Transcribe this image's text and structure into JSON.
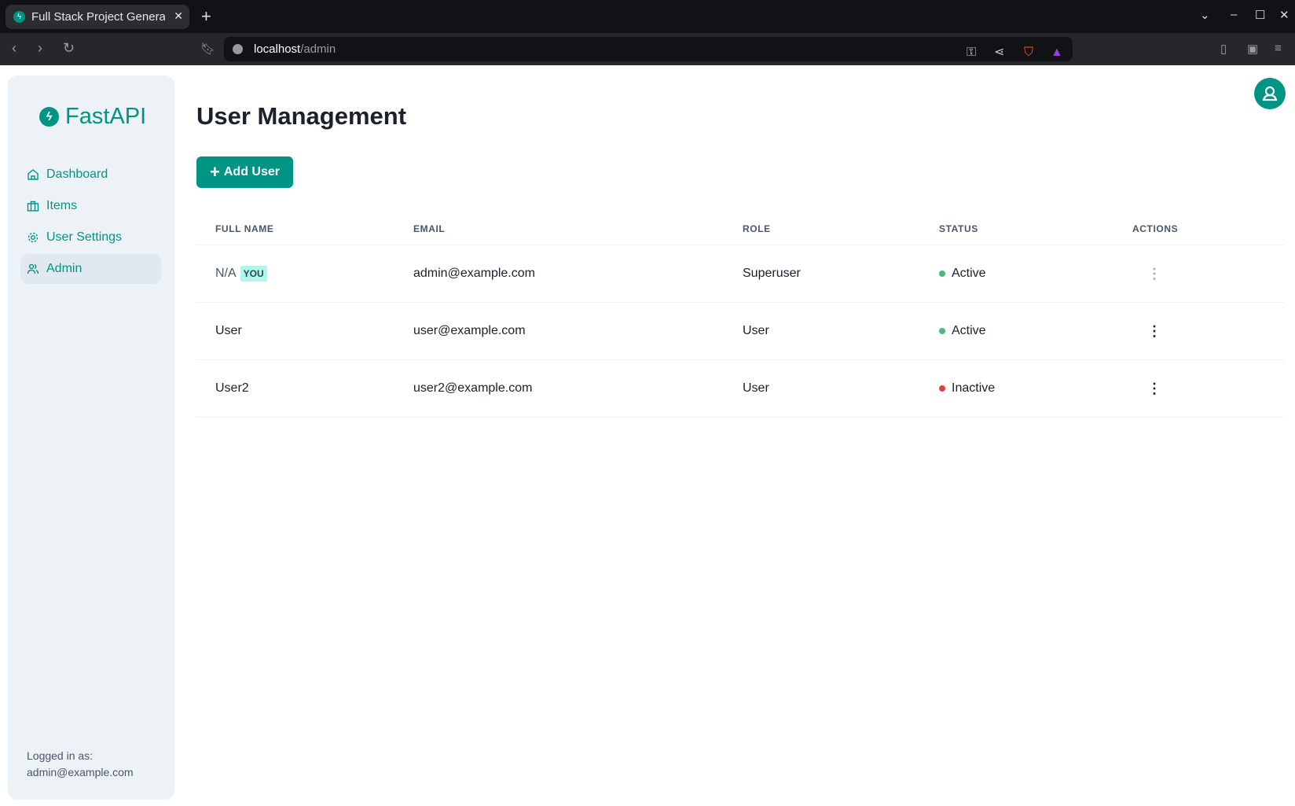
{
  "browser": {
    "tab_title": "Full Stack Project Generator",
    "url_host": "localhost",
    "url_path": "/admin"
  },
  "sidebar": {
    "logo": "FastAPI",
    "items": [
      {
        "label": "Dashboard",
        "icon": "home-icon"
      },
      {
        "label": "Items",
        "icon": "briefcase-icon"
      },
      {
        "label": "User Settings",
        "icon": "gear-icon"
      },
      {
        "label": "Admin",
        "icon": "users-icon",
        "active": true
      }
    ],
    "logged_label": "Logged in as:",
    "logged_email": "admin@example.com"
  },
  "main": {
    "title": "User Management",
    "add_button": "Add User",
    "columns": [
      "FULL NAME",
      "EMAIL",
      "ROLE",
      "STATUS",
      "ACTIONS"
    ],
    "rows": [
      {
        "name": "N/A",
        "badge": "YOU",
        "email": "admin@example.com",
        "role": "Superuser",
        "status": "Active",
        "status_color": "#48bb78"
      },
      {
        "name": "User",
        "email": "user@example.com",
        "role": "User",
        "status": "Active",
        "status_color": "#48bb78"
      },
      {
        "name": "User2",
        "email": "user2@example.com",
        "role": "User",
        "status": "Inactive",
        "status_color": "#e53e3e"
      }
    ]
  },
  "colors": {
    "accent": "#009485"
  }
}
